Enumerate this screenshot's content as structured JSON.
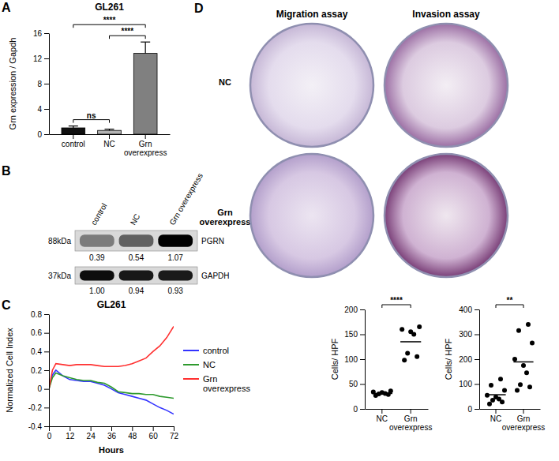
{
  "panel_labels": [
    "A",
    "B",
    "C",
    "D"
  ],
  "chart_data": [
    {
      "type": "bar",
      "title": "GL261",
      "y_label": "Grn expression / Gapdh",
      "categories": [
        "control",
        "NC",
        "Grn overexpress"
      ],
      "values": [
        1.0,
        0.6,
        12.8
      ],
      "errors": [
        0.3,
        0.2,
        1.8
      ],
      "colors": [
        "#111111",
        "#b3b3b3",
        "#808080"
      ],
      "ylim": [
        0,
        16
      ],
      "yticks": [
        0,
        4,
        8,
        12,
        16
      ],
      "annotations": [
        {
          "text": "ns",
          "between": [
            "control",
            "NC"
          ]
        },
        {
          "text": "****",
          "between": [
            "control",
            "Grn overexpress"
          ]
        },
        {
          "text": "****",
          "between": [
            "NC",
            "Grn overexpress"
          ]
        }
      ]
    },
    {
      "type": "line",
      "title": "GL261",
      "x_label": "Hours",
      "y_label": "Normalized Cell Index",
      "x": [
        0,
        2,
        4,
        8,
        12,
        16,
        20,
        24,
        28,
        32,
        36,
        40,
        44,
        48,
        52,
        56,
        60,
        64,
        68,
        72
      ],
      "series": [
        {
          "name": "control",
          "color": "#3333ff",
          "values": [
            0,
            0.15,
            0.2,
            0.14,
            0.1,
            0.09,
            0.08,
            0.08,
            0.06,
            0.04,
            0.0,
            -0.04,
            -0.06,
            -0.08,
            -0.1,
            -0.12,
            -0.16,
            -0.2,
            -0.23,
            -0.27
          ]
        },
        {
          "name": "NC",
          "color": "#2e9a2e",
          "values": [
            0,
            0.12,
            0.17,
            0.14,
            0.12,
            0.1,
            0.09,
            0.09,
            0.07,
            0.06,
            0.02,
            -0.03,
            -0.04,
            -0.05,
            -0.05,
            -0.06,
            -0.06,
            -0.08,
            -0.09,
            -0.1
          ]
        },
        {
          "name": "Grn overexpress",
          "color": "#ff3030",
          "values": [
            0,
            0.2,
            0.27,
            0.26,
            0.25,
            0.26,
            0.26,
            0.26,
            0.25,
            0.24,
            0.24,
            0.24,
            0.25,
            0.27,
            0.3,
            0.33,
            0.4,
            0.46,
            0.55,
            0.67
          ]
        }
      ],
      "xlim": [
        0,
        72
      ],
      "xticks": [
        0,
        12,
        24,
        36,
        48,
        60,
        72
      ],
      "ylim": [
        -0.4,
        0.8
      ],
      "yticks": [
        -0.4,
        -0.2,
        0,
        0.2,
        0.4,
        0.6,
        0.8
      ],
      "legend": "right"
    },
    {
      "type": "strip",
      "y_label": "Cells/ HPF",
      "categories": [
        "NC",
        "Grn overexpress"
      ],
      "points": [
        [
          27,
          29,
          30,
          31,
          33,
          34,
          36
        ],
        [
          98,
          105,
          112,
          150,
          155,
          160,
          165
        ]
      ],
      "means": [
        31,
        135
      ],
      "color": "#000000",
      "ylim": [
        0,
        200
      ],
      "yticks": [
        0,
        50,
        100,
        150,
        200
      ],
      "annotations": [
        {
          "text": "****",
          "between": [
            "NC",
            "Grn overexpress"
          ]
        }
      ]
    },
    {
      "type": "strip",
      "y_label": "Cells/ HPF",
      "categories": [
        "NC",
        "Grn overexpress"
      ],
      "points": [
        [
          20,
          28,
          35,
          40,
          48,
          55,
          75,
          95,
          120
        ],
        [
          75,
          88,
          98,
          145,
          175,
          200,
          265,
          315,
          340
        ]
      ],
      "means": [
        57,
        189
      ],
      "color": "#000000",
      "ylim": [
        0,
        400
      ],
      "yticks": [
        0,
        100,
        200,
        300,
        400
      ],
      "annotations": [
        {
          "text": "**",
          "between": [
            "NC",
            "Grn overexpress"
          ]
        }
      ]
    }
  ],
  "blot": {
    "lanes": [
      "control",
      "NC",
      "Grn overexpress"
    ],
    "bands": [
      {
        "name": "PGRN",
        "size": "88kDa",
        "values": [
          0.39,
          0.54,
          1.07
        ],
        "value_labels": [
          "0.39",
          "0.54",
          "1.07"
        ]
      },
      {
        "name": "GAPDH",
        "size": "37kDa",
        "values": [
          1.0,
          0.94,
          0.93
        ],
        "value_labels": [
          "1.00",
          "0.94",
          "0.93"
        ]
      }
    ]
  },
  "dishes": {
    "columns": [
      "Migration assay",
      "Invasion assay"
    ],
    "rows": [
      "NC",
      "Grn overexpress"
    ]
  }
}
